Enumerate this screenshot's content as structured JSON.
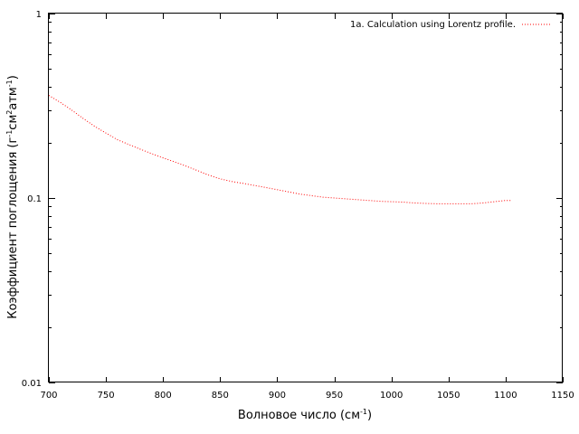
{
  "chart_data": {
    "type": "line",
    "title": "",
    "xlabel": "Волновое число (см",
    "xlabel_sup": "-1",
    "xlabel_tail": ")",
    "ylabel_parts": {
      "a": "Коэффициент поглощения (г",
      "b": "-1",
      "c": "см",
      "d": "2",
      "e": "атм",
      "f": "-1",
      "g": ")"
    },
    "xlim": [
      700,
      1150
    ],
    "ylim": [
      0.01,
      1
    ],
    "yscale": "log",
    "grid": false,
    "legend_position": "top-right",
    "x_ticks": [
      700,
      750,
      800,
      850,
      900,
      950,
      1000,
      1050,
      1100,
      1150
    ],
    "x_tick_labels": [
      "700",
      "750",
      "800",
      "850",
      "900",
      "950",
      "1000",
      "1050",
      "1100",
      "1150"
    ],
    "y_ticks": [
      1,
      0.1,
      0.01
    ],
    "y_tick_labels": [
      "1",
      "0.1",
      "0.01"
    ],
    "series": [
      {
        "name": "1a. Calculation using Lorentz profile.",
        "color": "#ff0000",
        "style": "dotted",
        "x": [
          700,
          710,
          720,
          730,
          740,
          750,
          760,
          770,
          780,
          790,
          800,
          810,
          820,
          830,
          840,
          850,
          860,
          870,
          880,
          890,
          900,
          910,
          920,
          930,
          940,
          950,
          960,
          970,
          980,
          990,
          1000,
          1010,
          1020,
          1030,
          1040,
          1050,
          1060,
          1070,
          1080,
          1090,
          1100,
          1105
        ],
        "y": [
          0.36,
          0.33,
          0.3,
          0.27,
          0.245,
          0.225,
          0.207,
          0.195,
          0.184,
          0.174,
          0.165,
          0.157,
          0.149,
          0.141,
          0.133,
          0.127,
          0.123,
          0.12,
          0.117,
          0.114,
          0.111,
          0.108,
          0.105,
          0.103,
          0.101,
          0.1,
          0.099,
          0.098,
          0.097,
          0.096,
          0.0955,
          0.095,
          0.094,
          0.0935,
          0.093,
          0.093,
          0.093,
          0.093,
          0.094,
          0.0955,
          0.097,
          0.097
        ]
      }
    ]
  }
}
